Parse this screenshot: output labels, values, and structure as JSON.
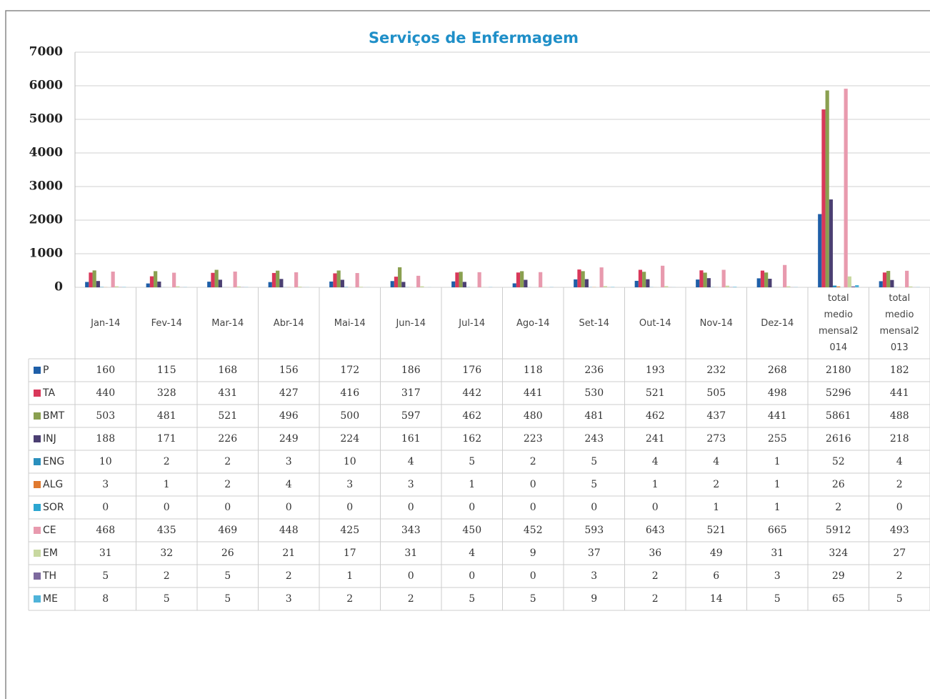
{
  "chart_data": {
    "type": "bar",
    "title": "Serviços de Enfermagem",
    "categories": [
      "Jan-14",
      "Fev-14",
      "Mar-14",
      "Abr-14",
      "Mai-14",
      "Jun-14",
      "Jul-14",
      "Ago-14",
      "Set-14",
      "Out-14",
      "Nov-14",
      "Dez-14",
      "total medio mensal2014",
      "total medio mensal2013"
    ],
    "series": [
      {
        "name": "P",
        "color": "#1f5fa8",
        "values": [
          160,
          115,
          168,
          156,
          172,
          186,
          176,
          118,
          236,
          193,
          232,
          268,
          2180,
          182
        ]
      },
      {
        "name": "TA",
        "color": "#d9385a",
        "values": [
          440,
          328,
          431,
          427,
          416,
          317,
          442,
          441,
          530,
          521,
          505,
          498,
          5296,
          441
        ]
      },
      {
        "name": "BMT",
        "color": "#8aa050",
        "values": [
          503,
          481,
          521,
          496,
          500,
          597,
          462,
          480,
          481,
          462,
          437,
          441,
          5861,
          488
        ]
      },
      {
        "name": "INJ",
        "color": "#4b3f72",
        "values": [
          188,
          171,
          226,
          249,
          224,
          161,
          162,
          223,
          243,
          241,
          273,
          255,
          2616,
          218
        ]
      },
      {
        "name": "ENG",
        "color": "#2a8fbd",
        "values": [
          10,
          2,
          2,
          3,
          10,
          4,
          5,
          2,
          5,
          4,
          4,
          1,
          52,
          4
        ]
      },
      {
        "name": "ALG",
        "color": "#e07a30",
        "values": [
          3,
          1,
          2,
          4,
          3,
          3,
          1,
          0,
          5,
          1,
          2,
          1,
          26,
          2
        ]
      },
      {
        "name": "SOR",
        "color": "#2ca6d1",
        "values": [
          0,
          0,
          0,
          0,
          0,
          0,
          0,
          0,
          0,
          0,
          1,
          1,
          2,
          0
        ]
      },
      {
        "name": "CE",
        "color": "#e89aae",
        "values": [
          468,
          435,
          469,
          448,
          425,
          343,
          450,
          452,
          593,
          643,
          521,
          665,
          5912,
          493
        ]
      },
      {
        "name": "EM",
        "color": "#c8d8a0",
        "values": [
          31,
          32,
          26,
          21,
          17,
          31,
          4,
          9,
          37,
          36,
          49,
          31,
          324,
          27
        ]
      },
      {
        "name": "TH",
        "color": "#7d6a9e",
        "values": [
          5,
          2,
          5,
          2,
          1,
          0,
          0,
          0,
          3,
          2,
          6,
          3,
          29,
          2
        ]
      },
      {
        "name": "ME",
        "color": "#4fb3d9",
        "values": [
          8,
          5,
          5,
          3,
          2,
          2,
          5,
          5,
          9,
          2,
          14,
          5,
          65,
          5
        ]
      }
    ],
    "ylim": [
      0,
      7000
    ],
    "yticks": [
      0,
      1000,
      2000,
      3000,
      4000,
      5000,
      6000,
      7000
    ],
    "grid": true
  }
}
